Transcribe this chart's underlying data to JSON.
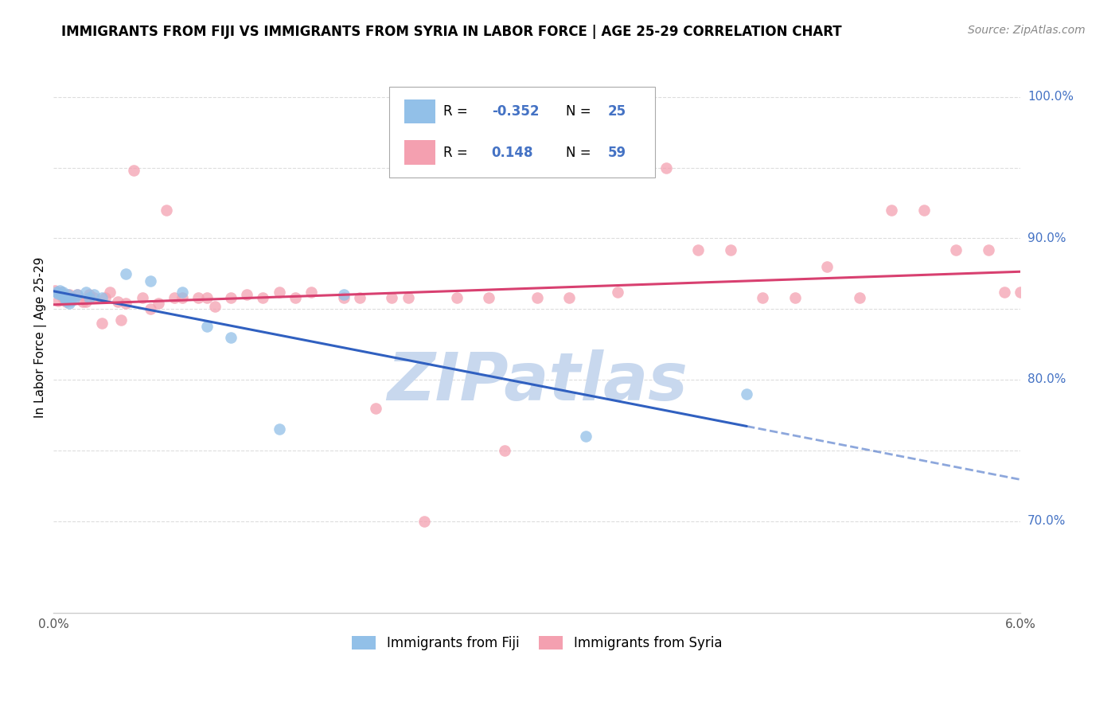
{
  "title": "IMMIGRANTS FROM FIJI VS IMMIGRANTS FROM SYRIA IN LABOR FORCE | AGE 25-29 CORRELATION CHART",
  "source": "Source: ZipAtlas.com",
  "ylabel": "In Labor Force | Age 25-29",
  "ytick_positions": [
    0.7,
    0.75,
    0.8,
    0.85,
    0.9,
    0.95,
    1.0
  ],
  "ytick_labels": [
    "70.0%",
    "",
    "80.0%",
    "",
    "90.0%",
    "",
    "100.0%"
  ],
  "xlim": [
    0.0,
    0.06
  ],
  "ylim": [
    0.635,
    1.025
  ],
  "fiji_R": -0.352,
  "fiji_N": 25,
  "syria_R": 0.148,
  "syria_N": 59,
  "fiji_color": "#92c0e8",
  "syria_color": "#f4a0b0",
  "fiji_line_color": "#3060c0",
  "syria_line_color": "#d84070",
  "fiji_x": [
    0.0002,
    0.0003,
    0.0004,
    0.0005,
    0.0006,
    0.0007,
    0.0008,
    0.0009,
    0.001,
    0.0011,
    0.0013,
    0.0015,
    0.002,
    0.0022,
    0.0025,
    0.003,
    0.0045,
    0.006,
    0.008,
    0.0095,
    0.011,
    0.014,
    0.018,
    0.033,
    0.043
  ],
  "fiji_y": [
    0.862,
    0.861,
    0.863,
    0.86,
    0.862,
    0.858,
    0.856,
    0.86,
    0.854,
    0.856,
    0.857,
    0.86,
    0.862,
    0.858,
    0.86,
    0.858,
    0.875,
    0.87,
    0.862,
    0.838,
    0.83,
    0.765,
    0.86,
    0.76,
    0.79
  ],
  "syria_x": [
    0.0001,
    0.0003,
    0.0005,
    0.0006,
    0.0008,
    0.001,
    0.0012,
    0.0015,
    0.0018,
    0.002,
    0.0022,
    0.0025,
    0.003,
    0.0032,
    0.0035,
    0.004,
    0.0042,
    0.0045,
    0.005,
    0.0055,
    0.006,
    0.0065,
    0.007,
    0.0075,
    0.008,
    0.009,
    0.0095,
    0.01,
    0.011,
    0.012,
    0.013,
    0.014,
    0.015,
    0.016,
    0.018,
    0.019,
    0.02,
    0.021,
    0.022,
    0.023,
    0.025,
    0.027,
    0.028,
    0.03,
    0.032,
    0.035,
    0.038,
    0.04,
    0.042,
    0.044,
    0.046,
    0.048,
    0.05,
    0.052,
    0.054,
    0.056,
    0.058,
    0.059,
    0.06
  ],
  "syria_y": [
    0.863,
    0.856,
    0.862,
    0.858,
    0.855,
    0.86,
    0.858,
    0.86,
    0.855,
    0.855,
    0.86,
    0.858,
    0.84,
    0.858,
    0.862,
    0.855,
    0.842,
    0.854,
    0.948,
    0.858,
    0.85,
    0.854,
    0.92,
    0.858,
    0.858,
    0.858,
    0.858,
    0.852,
    0.858,
    0.86,
    0.858,
    0.862,
    0.858,
    0.862,
    0.858,
    0.858,
    0.78,
    0.858,
    0.858,
    0.7,
    0.858,
    0.858,
    0.75,
    0.858,
    0.858,
    0.862,
    0.95,
    0.892,
    0.892,
    0.858,
    0.858,
    0.88,
    0.858,
    0.92,
    0.92,
    0.892,
    0.892,
    0.862,
    0.862
  ],
  "watermark_text": "ZIPatlas",
  "watermark_color": "#c8d8ee",
  "bg_color": "#ffffff",
  "grid_color": "#dddddd",
  "right_label_color": "#4472c4",
  "title_fontsize": 12,
  "axis_label_fontsize": 11,
  "tick_fontsize": 11
}
